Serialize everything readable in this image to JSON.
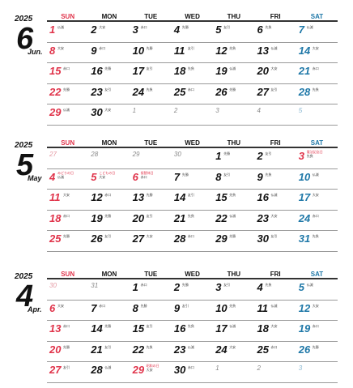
{
  "colors": {
    "sunday": "#e0334a",
    "saturday": "#1f78a8",
    "weekday": "#111111"
  },
  "weekday_headers": [
    "SUN",
    "MON",
    "TUE",
    "WED",
    "THU",
    "FRI",
    "SAT"
  ],
  "months": [
    {
      "year": "2025",
      "number": "6",
      "name": "Jun.",
      "weeks": [
        [
          {
            "d": "1",
            "r": "仏滅"
          },
          {
            "d": "2",
            "r": "大安"
          },
          {
            "d": "3",
            "r": "赤口"
          },
          {
            "d": "4",
            "r": "先勝"
          },
          {
            "d": "5",
            "r": "友引"
          },
          {
            "d": "6",
            "r": "先負"
          },
          {
            "d": "7",
            "r": "仏滅"
          }
        ],
        [
          {
            "d": "8",
            "r": "大安"
          },
          {
            "d": "9",
            "r": "赤口"
          },
          {
            "d": "10",
            "r": "先勝"
          },
          {
            "d": "11",
            "r": "友引"
          },
          {
            "d": "12",
            "r": "先負"
          },
          {
            "d": "13",
            "r": "仏滅"
          },
          {
            "d": "14",
            "r": "大安"
          }
        ],
        [
          {
            "d": "15",
            "r": "赤口"
          },
          {
            "d": "16",
            "r": "先勝"
          },
          {
            "d": "17",
            "r": "友引"
          },
          {
            "d": "18",
            "r": "先負"
          },
          {
            "d": "19",
            "r": "仏滅"
          },
          {
            "d": "20",
            "r": "大安"
          },
          {
            "d": "21",
            "r": "赤口"
          }
        ],
        [
          {
            "d": "22",
            "r": "先勝"
          },
          {
            "d": "23",
            "r": "友引"
          },
          {
            "d": "24",
            "r": "先負"
          },
          {
            "d": "25",
            "r": "赤口"
          },
          {
            "d": "26",
            "r": "先勝"
          },
          {
            "d": "27",
            "r": "友引"
          },
          {
            "d": "28",
            "r": "先負"
          }
        ],
        [
          {
            "d": "29",
            "r": "仏滅"
          },
          {
            "d": "30",
            "r": "大安"
          },
          {
            "d": "1",
            "m": true
          },
          {
            "d": "2",
            "m": true
          },
          {
            "d": "3",
            "m": true
          },
          {
            "d": "4",
            "m": true
          },
          {
            "d": "5",
            "m": true
          }
        ]
      ]
    },
    {
      "year": "2025",
      "number": "5",
      "name": "May",
      "weeks": [
        [
          {
            "d": "27",
            "m": true
          },
          {
            "d": "28",
            "m": true
          },
          {
            "d": "29",
            "m": true
          },
          {
            "d": "30",
            "m": true
          },
          {
            "d": "1",
            "r": "先勝"
          },
          {
            "d": "2",
            "r": "友引"
          },
          {
            "d": "3",
            "h": "憲法記念日",
            "r": "先負"
          }
        ],
        [
          {
            "d": "4",
            "h": "みどりの日",
            "r": "仏滅"
          },
          {
            "d": "5",
            "h": "こどもの日",
            "r": "大安"
          },
          {
            "d": "6",
            "h": "振替休日",
            "r": "赤口"
          },
          {
            "d": "7",
            "r": "先勝"
          },
          {
            "d": "8",
            "r": "友引"
          },
          {
            "d": "9",
            "r": "先負"
          },
          {
            "d": "10",
            "r": "仏滅"
          }
        ],
        [
          {
            "d": "11",
            "r": "大安"
          },
          {
            "d": "12",
            "r": "赤口"
          },
          {
            "d": "13",
            "r": "先勝"
          },
          {
            "d": "14",
            "r": "友引"
          },
          {
            "d": "15",
            "r": "先負"
          },
          {
            "d": "16",
            "r": "仏滅"
          },
          {
            "d": "17",
            "r": "大安"
          }
        ],
        [
          {
            "d": "18",
            "r": "赤口"
          },
          {
            "d": "19",
            "r": "先勝"
          },
          {
            "d": "20",
            "r": "友引"
          },
          {
            "d": "21",
            "r": "先負"
          },
          {
            "d": "22",
            "r": "仏滅"
          },
          {
            "d": "23",
            "r": "大安"
          },
          {
            "d": "24",
            "r": "赤口"
          }
        ],
        [
          {
            "d": "25",
            "r": "先勝"
          },
          {
            "d": "26",
            "r": "友引"
          },
          {
            "d": "27",
            "r": "大安"
          },
          {
            "d": "28",
            "r": "赤口"
          },
          {
            "d": "29",
            "r": "先勝"
          },
          {
            "d": "30",
            "r": "友引"
          },
          {
            "d": "31",
            "r": "先負"
          }
        ]
      ]
    },
    {
      "year": "2025",
      "number": "4",
      "name": "Apr.",
      "weeks": [
        [
          {
            "d": "30",
            "m": true
          },
          {
            "d": "31",
            "m": true
          },
          {
            "d": "1",
            "r": "赤口"
          },
          {
            "d": "2",
            "r": "先勝"
          },
          {
            "d": "3",
            "r": "友引"
          },
          {
            "d": "4",
            "r": "先負"
          },
          {
            "d": "5",
            "r": "仏滅"
          }
        ],
        [
          {
            "d": "6",
            "r": "大安"
          },
          {
            "d": "7",
            "r": "赤口"
          },
          {
            "d": "8",
            "r": "先勝"
          },
          {
            "d": "9",
            "r": "友引"
          },
          {
            "d": "10",
            "r": "先負"
          },
          {
            "d": "11",
            "r": "仏滅"
          },
          {
            "d": "12",
            "r": "大安"
          }
        ],
        [
          {
            "d": "13",
            "r": "赤口"
          },
          {
            "d": "14",
            "r": "先勝"
          },
          {
            "d": "15",
            "r": "友引"
          },
          {
            "d": "16",
            "r": "先負"
          },
          {
            "d": "17",
            "r": "仏滅"
          },
          {
            "d": "18",
            "r": "大安"
          },
          {
            "d": "19",
            "r": "赤口"
          }
        ],
        [
          {
            "d": "20",
            "r": "先勝"
          },
          {
            "d": "21",
            "r": "友引"
          },
          {
            "d": "22",
            "r": "先負"
          },
          {
            "d": "23",
            "r": "仏滅"
          },
          {
            "d": "24",
            "r": "大安"
          },
          {
            "d": "25",
            "r": "赤口"
          },
          {
            "d": "26",
            "r": "先勝"
          }
        ],
        [
          {
            "d": "27",
            "r": "友引"
          },
          {
            "d": "28",
            "r": "仏滅"
          },
          {
            "d": "29",
            "h": "昭和の日",
            "r": "大安"
          },
          {
            "d": "30",
            "r": "赤口"
          },
          {
            "d": "1",
            "m": true
          },
          {
            "d": "2",
            "m": true
          },
          {
            "d": "3",
            "m": true
          }
        ]
      ]
    }
  ]
}
